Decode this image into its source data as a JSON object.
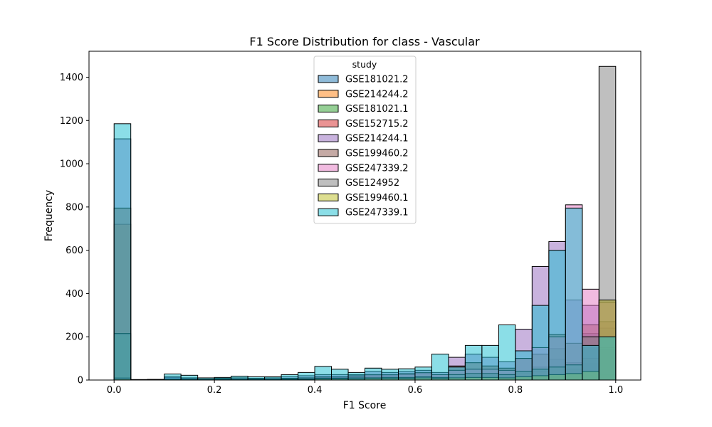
{
  "chart_data": {
    "type": "histogram",
    "title": "F1 Score Distribution for class - Vascular",
    "xlabel": "F1 Score",
    "ylabel": "Frequency",
    "xlim": [
      -0.05,
      1.05
    ],
    "ylim": [
      0,
      1520
    ],
    "xticks": [
      0.0,
      0.2,
      0.4,
      0.6,
      0.8,
      1.0
    ],
    "xtick_labels": [
      "0.0",
      "0.2",
      "0.4",
      "0.6",
      "0.8",
      "1.0"
    ],
    "yticks": [
      0,
      200,
      400,
      600,
      800,
      1000,
      1200,
      1400
    ],
    "ytick_labels": [
      "0",
      "200",
      "400",
      "600",
      "800",
      "1000",
      "1200",
      "1400"
    ],
    "bin_edges": [
      0.0,
      0.0333,
      0.0667,
      0.1,
      0.1333,
      0.1667,
      0.2,
      0.2333,
      0.2667,
      0.3,
      0.3333,
      0.3667,
      0.4,
      0.4333,
      0.4667,
      0.5,
      0.5333,
      0.5667,
      0.6,
      0.6333,
      0.6667,
      0.7,
      0.7333,
      0.7667,
      0.8,
      0.8333,
      0.8667,
      0.9,
      0.9333,
      0.9667,
      1.0
    ],
    "legend": {
      "title": "study",
      "location": "upper center"
    },
    "series": [
      {
        "name": "GSE181021.2",
        "color": "#1f77b4",
        "values": [
          0,
          0,
          0,
          12,
          10,
          2,
          0,
          3,
          3,
          2,
          5,
          6,
          5,
          3,
          3,
          8,
          6,
          8,
          10,
          8,
          8,
          15,
          10,
          8,
          20,
          25,
          95,
          25,
          215,
          240
        ]
      },
      {
        "name": "GSE214244.2",
        "color": "#ff7f0e",
        "values": [
          720,
          0,
          0,
          3,
          2,
          1,
          0,
          2,
          2,
          1,
          3,
          3,
          4,
          3,
          3,
          5,
          5,
          4,
          5,
          4,
          4,
          6,
          5,
          5,
          8,
          8,
          10,
          15,
          20,
          25
        ]
      },
      {
        "name": "GSE181021.1",
        "color": "#2ca02c",
        "values": [
          210,
          0,
          0,
          2,
          2,
          1,
          1,
          2,
          2,
          1,
          3,
          8,
          15,
          12,
          10,
          12,
          8,
          10,
          12,
          8,
          12,
          15,
          20,
          25,
          40,
          60,
          145,
          50,
          75,
          150
        ]
      },
      {
        "name": "GSE152715.2",
        "color": "#d62728",
        "values": [
          5,
          0,
          0,
          3,
          2,
          2,
          1,
          3,
          3,
          2,
          5,
          8,
          8,
          10,
          8,
          12,
          10,
          12,
          15,
          10,
          12,
          20,
          20,
          20,
          30,
          40,
          60,
          80,
          100,
          140
        ]
      },
      {
        "name": "GSE214244.1",
        "color": "#9467bd",
        "values": [
          1115,
          2,
          2,
          15,
          10,
          5,
          8,
          10,
          8,
          10,
          15,
          20,
          25,
          25,
          25,
          40,
          35,
          40,
          45,
          35,
          105,
          120,
          105,
          85,
          235,
          525,
          640,
          370,
          345,
          370
        ]
      },
      {
        "name": "GSE199460.2",
        "color": "#8c564b",
        "values": [
          795,
          0,
          0,
          3,
          3,
          3,
          5,
          5,
          5,
          5,
          8,
          10,
          12,
          10,
          15,
          20,
          20,
          25,
          30,
          25,
          65,
          80,
          65,
          55,
          100,
          120,
          210,
          170,
          255,
          270
        ]
      },
      {
        "name": "GSE247339.2",
        "color": "#e377c2",
        "values": [
          10,
          0,
          0,
          5,
          5,
          3,
          5,
          5,
          5,
          5,
          8,
          10,
          15,
          15,
          20,
          25,
          25,
          30,
          35,
          25,
          45,
          50,
          50,
          45,
          100,
          150,
          200,
          810,
          420,
          360
        ]
      },
      {
        "name": "GSE124952",
        "color": "#7f7f7f",
        "values": [
          215,
          0,
          0,
          3,
          3,
          2,
          3,
          3,
          3,
          3,
          5,
          5,
          8,
          8,
          10,
          10,
          12,
          12,
          15,
          12,
          25,
          30,
          30,
          25,
          40,
          50,
          60,
          70,
          200,
          1450
        ]
      },
      {
        "name": "GSE199460.1",
        "color": "#bcbd22",
        "values": [
          5,
          0,
          0,
          2,
          2,
          1,
          2,
          2,
          2,
          2,
          3,
          3,
          5,
          5,
          5,
          8,
          8,
          8,
          10,
          8,
          10,
          12,
          12,
          10,
          15,
          20,
          25,
          30,
          40,
          370
        ]
      },
      {
        "name": "GSE247339.1",
        "color": "#17becf",
        "values": [
          1185,
          2,
          3,
          28,
          22,
          10,
          12,
          18,
          15,
          15,
          25,
          35,
          63,
          50,
          35,
          55,
          50,
          52,
          60,
          120,
          60,
          160,
          160,
          255,
          135,
          345,
          600,
          795,
          160,
          200
        ]
      }
    ]
  }
}
